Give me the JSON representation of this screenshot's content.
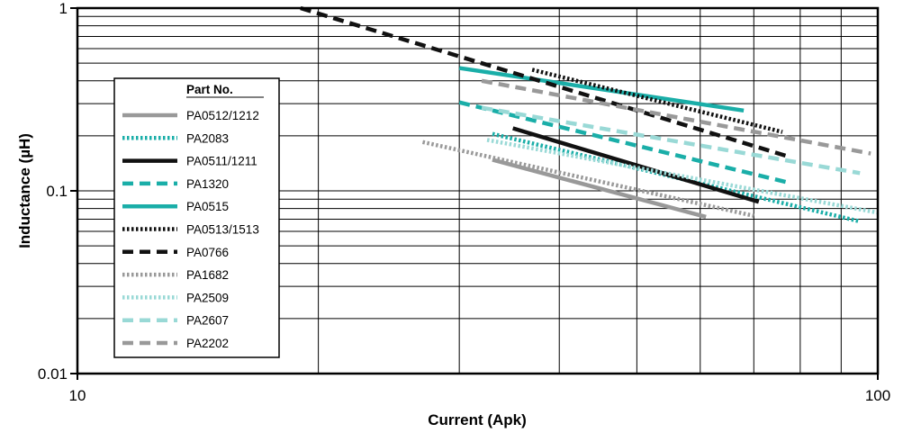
{
  "chart_data": {
    "type": "line",
    "title": "",
    "xlabel": "Current (Apk)",
    "ylabel": "Inductance (µH)",
    "x_scale": "log",
    "y_scale": "log",
    "xlim": [
      10,
      100
    ],
    "ylim": [
      0.01,
      1
    ],
    "x_ticks": [
      {
        "value": 10,
        "label": "10"
      },
      {
        "value": 100,
        "label": "100"
      }
    ],
    "y_ticks": [
      {
        "value": 0.01,
        "label": "0.01"
      },
      {
        "value": 0.1,
        "label": "0.1"
      },
      {
        "value": 1,
        "label": "1"
      }
    ],
    "grid": true,
    "legend": {
      "title": "Part No.",
      "placement": "left"
    },
    "series": [
      {
        "name": "PA0512/1212",
        "color": "#999999",
        "dash": "solid",
        "points": [
          [
            33,
            0.148
          ],
          [
            61,
            0.072
          ]
        ]
      },
      {
        "name": "PA2083",
        "color": "#1aaea8",
        "dash": "dotted",
        "points": [
          [
            33,
            0.205
          ],
          [
            95,
            0.068
          ]
        ]
      },
      {
        "name": "PA0511/1211",
        "color": "#111111",
        "dash": "solid",
        "points": [
          [
            35,
            0.22
          ],
          [
            71,
            0.087
          ]
        ]
      },
      {
        "name": "PA1320",
        "color": "#1aaea8",
        "dash": "dashed",
        "points": [
          [
            30,
            0.305
          ],
          [
            78,
            0.11
          ]
        ]
      },
      {
        "name": "PA0515",
        "color": "#1aaea8",
        "dash": "solid",
        "points": [
          [
            30,
            0.47
          ],
          [
            68,
            0.275
          ]
        ]
      },
      {
        "name": "PA0513/1513",
        "color": "#111111",
        "dash": "dotted",
        "points": [
          [
            37,
            0.46
          ],
          [
            76,
            0.21
          ]
        ]
      },
      {
        "name": "PA0766",
        "color": "#111111",
        "dash": "dashed",
        "points": [
          [
            19,
            1.0
          ],
          [
            77,
            0.155
          ]
        ]
      },
      {
        "name": "PA1682",
        "color": "#999999",
        "dash": "dotted",
        "points": [
          [
            27,
            0.185
          ],
          [
            70,
            0.073
          ]
        ]
      },
      {
        "name": "PA2509",
        "color": "#99d9d6",
        "dash": "dotted",
        "points": [
          [
            32.5,
            0.19
          ],
          [
            100,
            0.076
          ]
        ]
      },
      {
        "name": "PA2607",
        "color": "#99d9d6",
        "dash": "dashed",
        "points": [
          [
            32,
            0.285
          ],
          [
            95,
            0.125
          ]
        ]
      },
      {
        "name": "PA2202",
        "color": "#999999",
        "dash": "dashed",
        "points": [
          [
            32,
            0.4
          ],
          [
            98,
            0.16
          ]
        ]
      }
    ]
  }
}
